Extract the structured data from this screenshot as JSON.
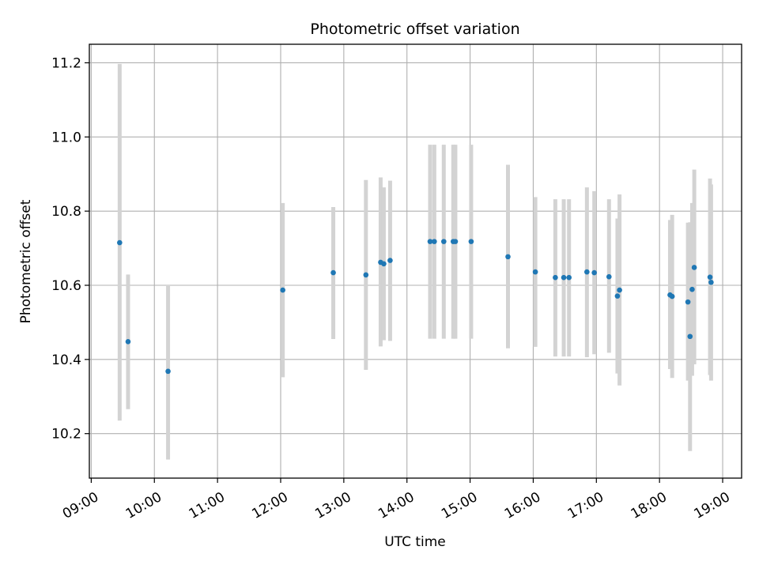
{
  "chart_data": {
    "type": "scatter",
    "title": "Photometric offset variation",
    "xlabel": "UTC time",
    "ylabel": "Photometric offset",
    "x_unit": "hours UTC",
    "xlim": [
      8.97,
      19.3
    ],
    "ylim": [
      10.08,
      11.25
    ],
    "x_ticks": [
      {
        "value": 9,
        "label": "09:00"
      },
      {
        "value": 10,
        "label": "10:00"
      },
      {
        "value": 11,
        "label": "11:00"
      },
      {
        "value": 12,
        "label": "12:00"
      },
      {
        "value": 13,
        "label": "13:00"
      },
      {
        "value": 14,
        "label": "14:00"
      },
      {
        "value": 15,
        "label": "15:00"
      },
      {
        "value": 16,
        "label": "16:00"
      },
      {
        "value": 17,
        "label": "17:00"
      },
      {
        "value": 18,
        "label": "18:00"
      },
      {
        "value": 19,
        "label": "19:00"
      }
    ],
    "y_ticks": [
      {
        "value": 10.2,
        "label": "10.2"
      },
      {
        "value": 10.4,
        "label": "10.4"
      },
      {
        "value": 10.6,
        "label": "10.6"
      },
      {
        "value": 10.8,
        "label": "10.8"
      },
      {
        "value": 11.0,
        "label": "11.0"
      },
      {
        "value": 11.2,
        "label": "11.2"
      }
    ],
    "grid": true,
    "point_color": "#1f77b4",
    "errorbar_color": "#d3d3d3",
    "points": [
      {
        "x": "09:27",
        "y": 10.715,
        "lo": 10.235,
        "hi": 11.197
      },
      {
        "x": "09:35",
        "y": 10.448,
        "lo": 10.266,
        "hi": 10.629
      },
      {
        "x": "10:13",
        "y": 10.368,
        "lo": 10.13,
        "hi": 10.598
      },
      {
        "x": "12:02",
        "y": 10.587,
        "lo": 10.352,
        "hi": 10.822
      },
      {
        "x": "12:50",
        "y": 10.634,
        "lo": 10.455,
        "hi": 10.811
      },
      {
        "x": "13:21",
        "y": 10.628,
        "lo": 10.372,
        "hi": 10.884
      },
      {
        "x": "13:35",
        "y": 10.662,
        "lo": 10.435,
        "hi": 10.891
      },
      {
        "x": "13:38",
        "y": 10.658,
        "lo": 10.452,
        "hi": 10.864
      },
      {
        "x": "13:44",
        "y": 10.667,
        "lo": 10.45,
        "hi": 10.882
      },
      {
        "x": "14:22",
        "y": 10.718,
        "lo": 10.456,
        "hi": 10.979
      },
      {
        "x": "14:26",
        "y": 10.718,
        "lo": 10.456,
        "hi": 10.979
      },
      {
        "x": "14:35",
        "y": 10.718,
        "lo": 10.456,
        "hi": 10.979
      },
      {
        "x": "14:44",
        "y": 10.718,
        "lo": 10.456,
        "hi": 10.979
      },
      {
        "x": "14:46",
        "y": 10.718,
        "lo": 10.456,
        "hi": 10.979
      },
      {
        "x": "15:01",
        "y": 10.718,
        "lo": 10.456,
        "hi": 10.979
      },
      {
        "x": "15:36",
        "y": 10.677,
        "lo": 10.43,
        "hi": 10.925
      },
      {
        "x": "16:02",
        "y": 10.636,
        "lo": 10.434,
        "hi": 10.838
      },
      {
        "x": "16:21",
        "y": 10.621,
        "lo": 10.408,
        "hi": 10.832
      },
      {
        "x": "16:29",
        "y": 10.621,
        "lo": 10.408,
        "hi": 10.832
      },
      {
        "x": "16:34",
        "y": 10.621,
        "lo": 10.408,
        "hi": 10.832
      },
      {
        "x": "16:51",
        "y": 10.636,
        "lo": 10.406,
        "hi": 10.864
      },
      {
        "x": "16:58",
        "y": 10.634,
        "lo": 10.414,
        "hi": 10.854
      },
      {
        "x": "17:12",
        "y": 10.623,
        "lo": 10.418,
        "hi": 10.832
      },
      {
        "x": "17:20",
        "y": 10.571,
        "lo": 10.362,
        "hi": 10.78
      },
      {
        "x": "17:22",
        "y": 10.587,
        "lo": 10.33,
        "hi": 10.845
      },
      {
        "x": "18:10",
        "y": 10.574,
        "lo": 10.374,
        "hi": 10.776
      },
      {
        "x": "18:12",
        "y": 10.57,
        "lo": 10.35,
        "hi": 10.79
      },
      {
        "x": "18:27",
        "y": 10.555,
        "lo": 10.343,
        "hi": 10.769
      },
      {
        "x": "18:29",
        "y": 10.462,
        "lo": 10.153,
        "hi": 10.77
      },
      {
        "x": "18:31",
        "y": 10.589,
        "lo": 10.356,
        "hi": 10.822
      },
      {
        "x": "18:33",
        "y": 10.648,
        "lo": 10.387,
        "hi": 10.912
      },
      {
        "x": "18:48",
        "y": 10.622,
        "lo": 10.358,
        "hi": 10.888
      },
      {
        "x": "18:49",
        "y": 10.608,
        "lo": 10.343,
        "hi": 10.872
      }
    ]
  }
}
